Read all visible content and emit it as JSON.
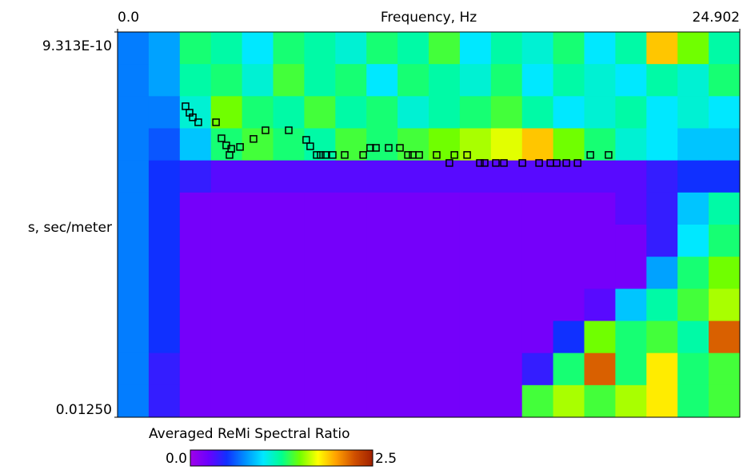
{
  "chart_data": {
    "type": "heatmap",
    "xlabel": "Frequency, Hz",
    "ylabel": "s, sec/meter",
    "xlim": [
      0,
      24.902
    ],
    "xticks": [
      {
        "value": 0,
        "label": "0.0"
      },
      24.902
    ],
    "ylim": [
      9.313e-10,
      0.0125
    ],
    "yaxis_inverted": true,
    "yticks": [
      {
        "value": 9.313e-10,
        "label": "9.313E-10"
      },
      {
        "value": 0.0125,
        "label": "0.01250"
      }
    ],
    "colorscale": [
      "#a000e8",
      "#6a00ff",
      "#1030ff",
      "#0090ff",
      "#00e8ff",
      "#00ff90",
      "#70ff00",
      "#ffff00",
      "#ffa000",
      "#d05000",
      "#a02000"
    ],
    "z": [
      [
        0.7,
        0.8,
        1.3,
        1.2,
        1.0,
        1.3,
        1.2,
        1.1,
        1.3,
        1.2,
        1.4,
        1.0,
        1.2,
        1.1,
        1.3,
        1.0,
        1.2,
        1.9,
        1.5,
        1.2
      ],
      [
        0.7,
        0.8,
        1.2,
        1.3,
        1.1,
        1.4,
        1.2,
        1.3,
        1.0,
        1.3,
        1.2,
        1.1,
        1.3,
        1.0,
        1.2,
        1.1,
        1.0,
        1.2,
        1.1,
        1.3
      ],
      [
        0.7,
        0.7,
        1.1,
        1.5,
        1.3,
        1.2,
        1.4,
        1.2,
        1.3,
        1.1,
        1.2,
        1.3,
        1.4,
        1.2,
        1.0,
        1.1,
        1.2,
        1.0,
        1.1,
        1.0
      ],
      [
        0.7,
        0.6,
        0.9,
        1.3,
        1.4,
        1.3,
        1.2,
        1.4,
        1.3,
        1.4,
        1.5,
        1.6,
        1.7,
        1.9,
        1.5,
        1.3,
        1.1,
        1.0,
        0.9,
        0.9
      ],
      [
        0.7,
        0.5,
        0.4,
        0.3,
        0.3,
        0.3,
        0.3,
        0.3,
        0.3,
        0.3,
        0.3,
        0.3,
        0.3,
        0.3,
        0.3,
        0.3,
        0.3,
        0.4,
        0.5,
        0.5
      ],
      [
        0.7,
        0.5,
        0.2,
        0.2,
        0.2,
        0.2,
        0.2,
        0.2,
        0.2,
        0.2,
        0.2,
        0.2,
        0.2,
        0.2,
        0.2,
        0.2,
        0.3,
        0.4,
        0.9,
        1.2
      ],
      [
        0.7,
        0.5,
        0.2,
        0.2,
        0.2,
        0.2,
        0.2,
        0.2,
        0.2,
        0.2,
        0.2,
        0.2,
        0.2,
        0.2,
        0.2,
        0.2,
        0.2,
        0.4,
        1.0,
        1.3
      ],
      [
        0.7,
        0.5,
        0.2,
        0.2,
        0.2,
        0.2,
        0.2,
        0.2,
        0.2,
        0.2,
        0.2,
        0.2,
        0.2,
        0.2,
        0.2,
        0.2,
        0.2,
        0.8,
        1.3,
        1.5
      ],
      [
        0.7,
        0.5,
        0.2,
        0.2,
        0.2,
        0.2,
        0.2,
        0.2,
        0.2,
        0.2,
        0.2,
        0.2,
        0.2,
        0.2,
        0.2,
        0.3,
        0.9,
        1.2,
        1.4,
        1.6
      ],
      [
        0.7,
        0.5,
        0.2,
        0.2,
        0.2,
        0.2,
        0.2,
        0.2,
        0.2,
        0.2,
        0.2,
        0.2,
        0.2,
        0.2,
        0.5,
        1.5,
        1.3,
        1.4,
        1.2,
        2.2
      ],
      [
        0.7,
        0.4,
        0.2,
        0.2,
        0.2,
        0.2,
        0.2,
        0.2,
        0.2,
        0.2,
        0.2,
        0.2,
        0.2,
        0.4,
        1.3,
        2.2,
        1.3,
        1.8,
        1.3,
        1.4
      ],
      [
        0.7,
        0.4,
        0.2,
        0.2,
        0.2,
        0.2,
        0.2,
        0.2,
        0.2,
        0.2,
        0.2,
        0.2,
        0.2,
        1.4,
        1.6,
        1.4,
        1.6,
        1.8,
        1.3,
        1.4
      ]
    ],
    "picks": {
      "x": [
        2.72,
        2.88,
        3.01,
        3.23,
        3.94,
        4.16,
        4.35,
        4.48,
        4.55,
        4.9,
        5.44,
        5.92,
        6.85,
        7.55,
        7.71,
        7.97,
        8.13,
        8.32,
        8.61,
        9.09,
        9.83,
        10.11,
        10.34,
        10.85,
        11.3,
        11.62,
        11.81,
        12.07,
        12.77,
        13.28,
        13.48,
        13.99,
        14.5,
        14.69,
        15.14,
        15.46,
        16.2,
        16.87,
        17.32,
        17.57,
        17.96,
        18.41,
        18.92,
        19.65
      ],
      "values": [
        0.00241,
        0.00262,
        0.00277,
        0.00293,
        0.00293,
        0.00345,
        0.00368,
        0.00399,
        0.00379,
        0.00373,
        0.00347,
        0.00319,
        0.00319,
        0.0035,
        0.00371,
        0.00399,
        0.00399,
        0.00399,
        0.00399,
        0.00399,
        0.00399,
        0.00376,
        0.00376,
        0.00376,
        0.00376,
        0.00399,
        0.00399,
        0.00399,
        0.00399,
        0.00425,
        0.00399,
        0.00399,
        0.00425,
        0.00425,
        0.00425,
        0.00425,
        0.00425,
        0.00425,
        0.00425,
        0.00425,
        0.00425,
        0.00425,
        0.00399,
        0.00399
      ]
    },
    "colorbar": {
      "title": "Averaged ReMi Spectral Ratio",
      "lim": [
        0,
        2.5
      ],
      "ticks": [
        {
          "value": 0,
          "label": "0.0"
        },
        2.5
      ]
    }
  }
}
